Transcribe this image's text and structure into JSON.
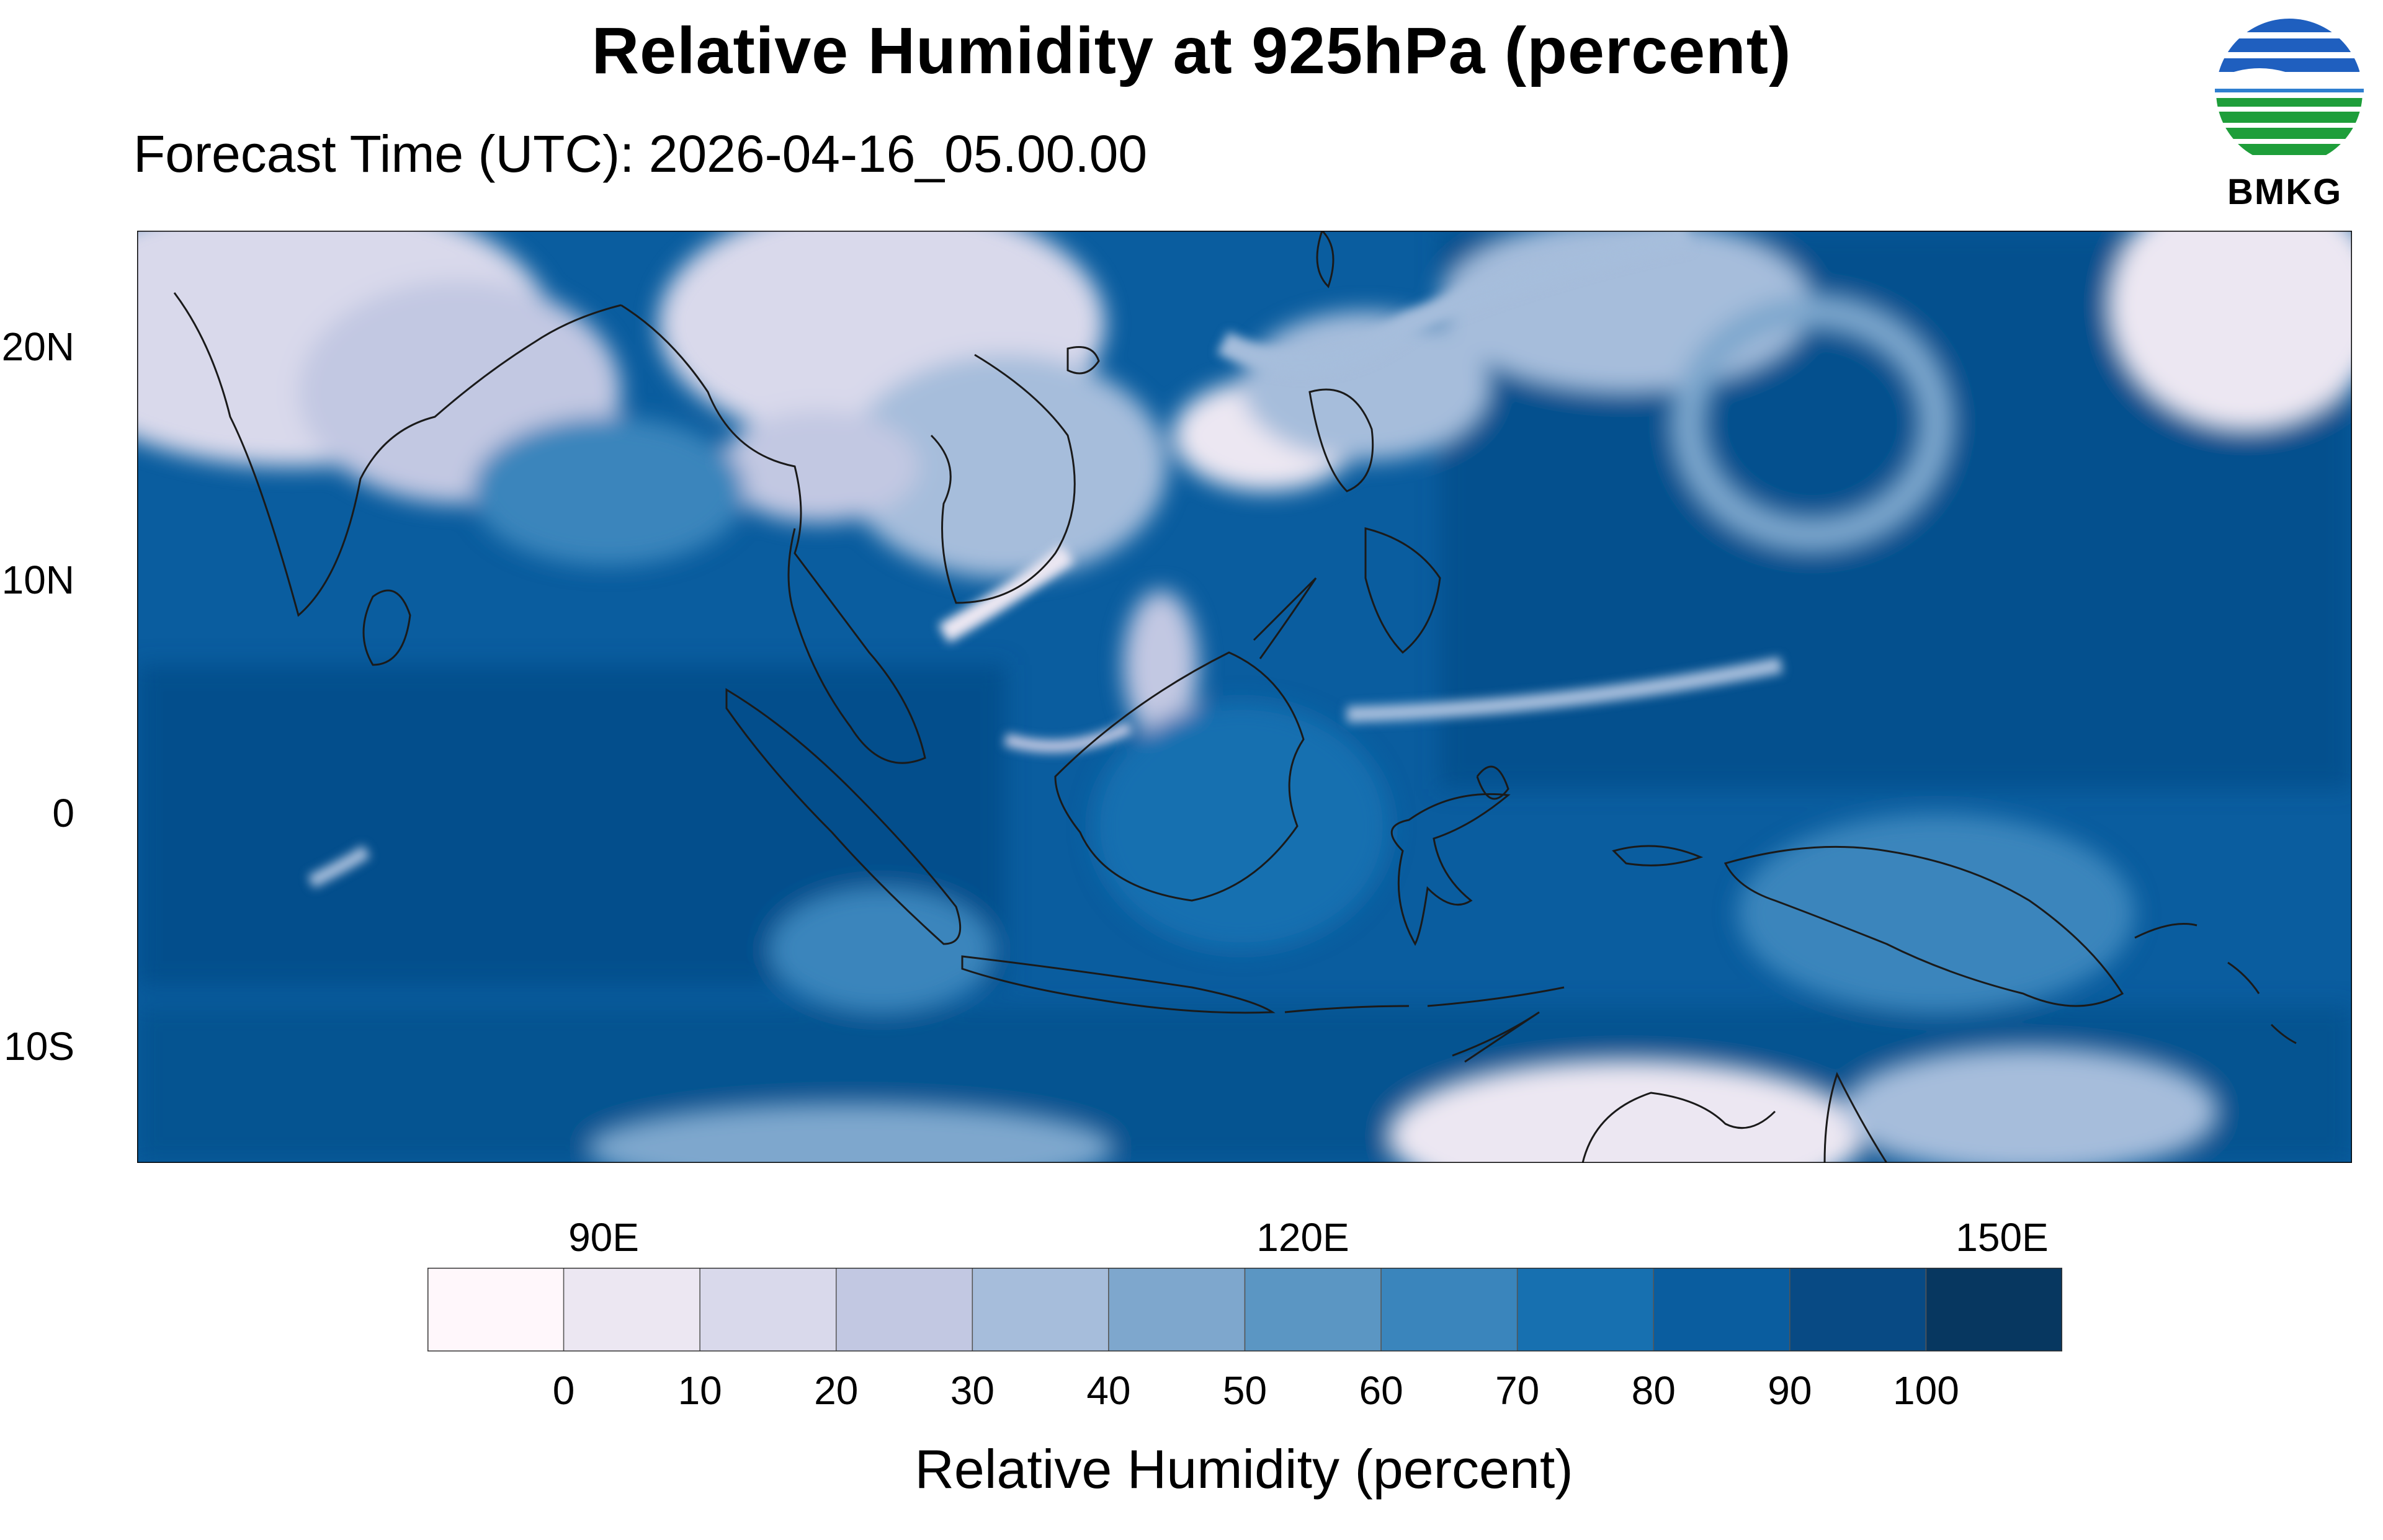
{
  "title": "Relative Humidity at 925hPa (percent)",
  "subtitle": "Forecast Time (UTC): 2026-04-16_05.00.00",
  "logo": {
    "text": "BMKG",
    "colors": {
      "blue": "#1f5fbf",
      "green": "#1e9e3a"
    }
  },
  "map": {
    "lon_range": [
      70,
      165
    ],
    "lat_range": [
      -15,
      25
    ],
    "lat_ticks": [
      "20N",
      "10N",
      "0",
      "10S"
    ],
    "lon_ticks": [
      "90E",
      "120E",
      "150E"
    ],
    "land_outline_color": "#1a1a1a",
    "ocean_base_color": "#08589e"
  },
  "colorbar": {
    "title": "Relative Humidity (percent)",
    "labels": [
      "0",
      "10",
      "20",
      "30",
      "40",
      "50",
      "60",
      "70",
      "80",
      "90",
      "100"
    ],
    "colors": [
      "#fff7fb",
      "#ece7f2",
      "#d9d9eb",
      "#c2c8e2",
      "#a6bddb",
      "#7ea7cd",
      "#5b96c3",
      "#3a85bc",
      "#1770b0",
      "#0a5d9f",
      "#084a84",
      "#073760"
    ]
  }
}
